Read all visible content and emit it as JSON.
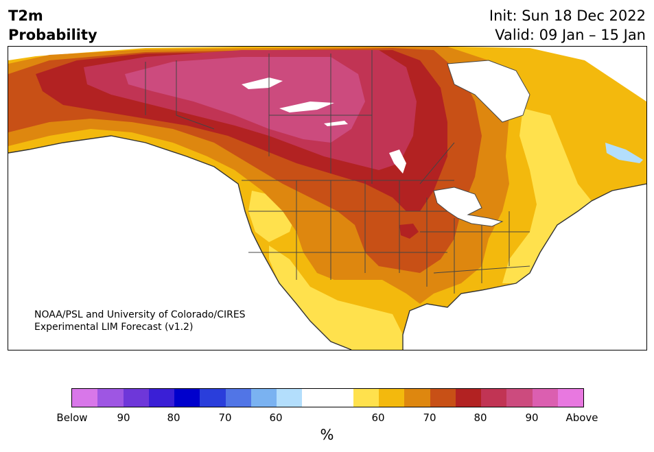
{
  "header": {
    "variable": "T2m",
    "subtitle": "Probability",
    "init": "Init: Sun 18 Dec 2022",
    "valid": "Valid: 09 Jan – 15 Jan"
  },
  "map": {
    "credit_line1": "NOAA/PSL and University of Colorado/CIRES",
    "credit_line2": "Experimental LIM Forecast (v1.2)"
  },
  "colorbar": {
    "colors": [
      "#d877e9",
      "#9e56e3",
      "#6e37d9",
      "#3a1fd6",
      "#0000cc",
      "#2a3edb",
      "#5175e6",
      "#7ab2f1",
      "#b3defc",
      "#ffffff",
      "#ffffff",
      "#ffe14d",
      "#f3b90d",
      "#de870f",
      "#c85016",
      "#b22222",
      "#c13454",
      "#cc4b7e",
      "#db5fb0",
      "#e878e0"
    ],
    "tick_labels": [
      "Below",
      "90",
      "80",
      "70",
      "60",
      "60",
      "70",
      "80",
      "90",
      "Above"
    ],
    "unit": "%"
  }
}
